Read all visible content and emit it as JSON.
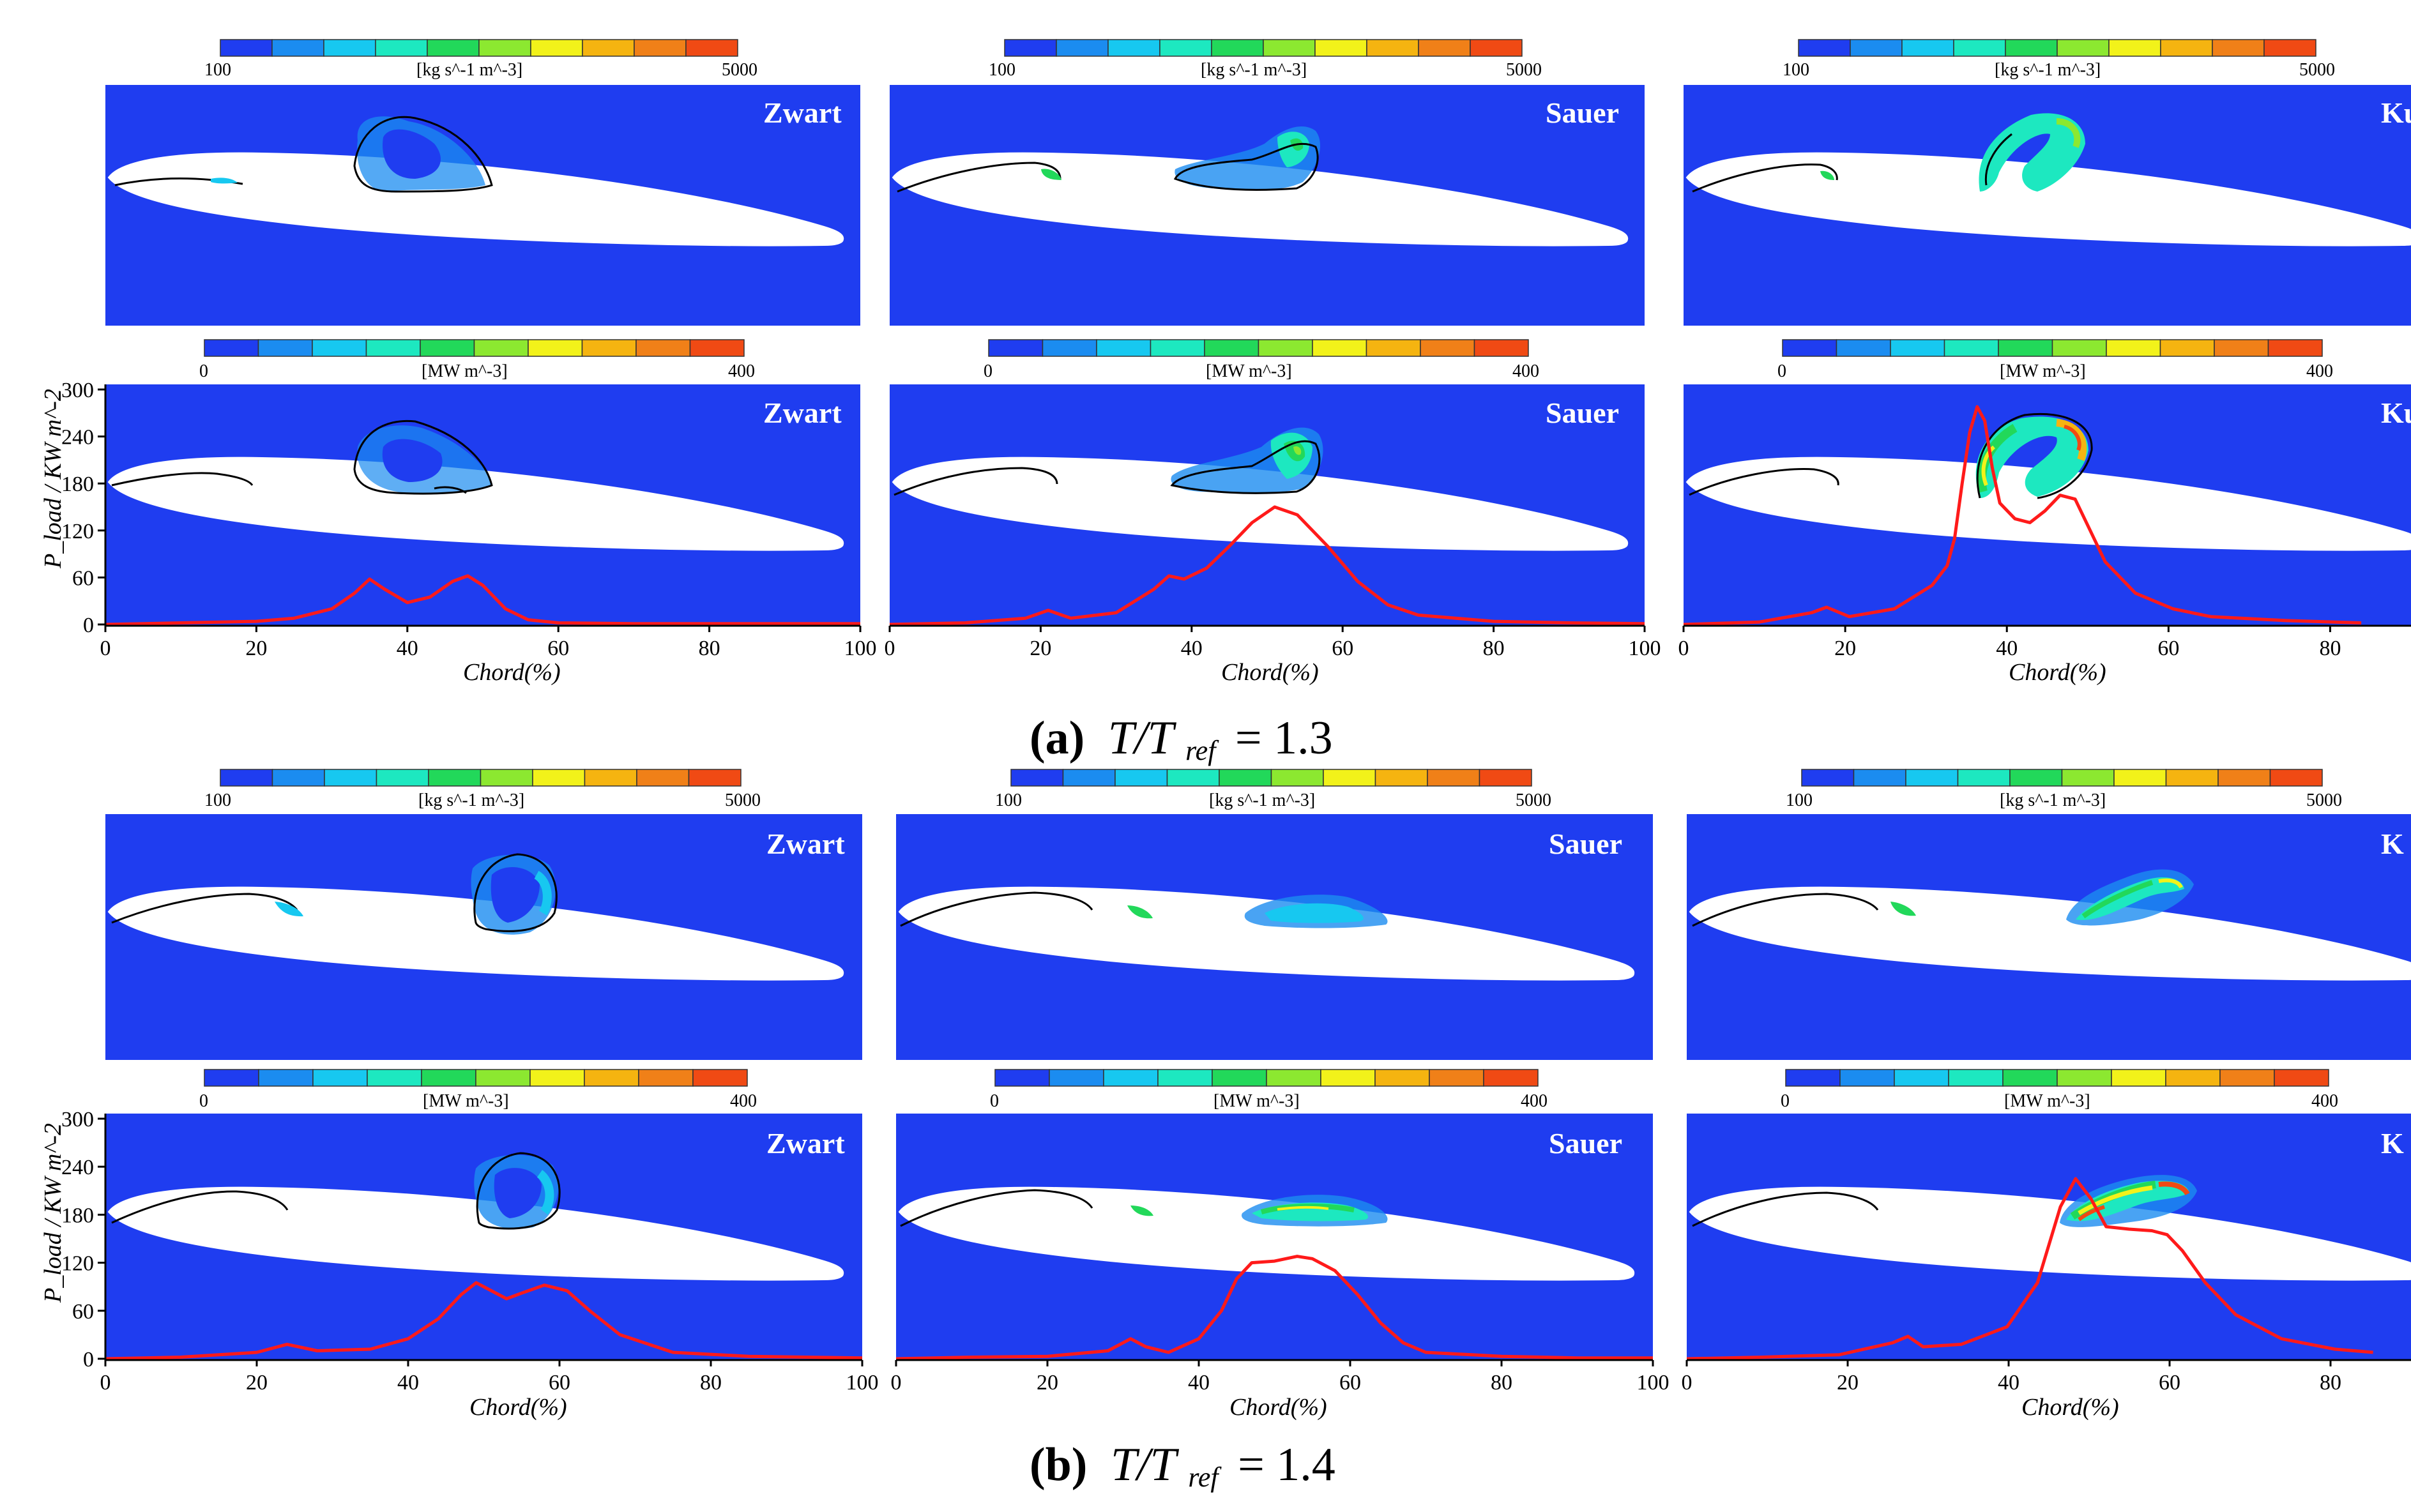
{
  "chart_data": {
    "type": "line",
    "colorbars": {
      "rate": {
        "min": "100",
        "max": "5000",
        "unit": "[kg s^-1 m^-3]"
      },
      "power": {
        "min": "0",
        "max": "400",
        "unit": "[MW m^-3]"
      }
    },
    "colorbar_colors": [
      "#1f3df0",
      "#1b8cf0",
      "#17c8f0",
      "#1de8c0",
      "#22d85a",
      "#8ce830",
      "#f2f21a",
      "#f5b410",
      "#f08018",
      "#f04a14"
    ],
    "colors": {
      "cavity_bg": "#1f3df0",
      "curve": "#ff1a1a",
      "foil": "#ffffff"
    },
    "x_axis": {
      "label": "Chord(%)",
      "ticks": [
        0,
        20,
        40,
        60,
        80,
        100
      ],
      "range": [
        0,
        100
      ]
    },
    "y_axis": {
      "label": "P_load / KW m^-2",
      "ticks": [
        0,
        60,
        120,
        180,
        240,
        300
      ],
      "range": [
        0,
        300
      ]
    },
    "models": [
      "Zwart",
      "Sauer",
      "Kunz"
    ],
    "visible_model_labels": [
      "Zwart",
      "Sauer",
      "Ku",
      "Zwart",
      "Sauer",
      "Ku",
      "Zwart",
      "Sauer",
      "K",
      "Zwart",
      "Sauer",
      "K"
    ],
    "groups": [
      {
        "tag": "(a)",
        "caption_ratio": "T/T",
        "caption_sub": "ref",
        "caption_value": "= 1.3",
        "series": [
          {
            "name": "Zwart",
            "x": [
              0,
              10,
              20,
              25,
              30,
              33,
              35,
              37,
              40,
              43,
              46,
              48,
              50,
              53,
              56,
              60,
              70,
              80,
              90,
              100
            ],
            "y": [
              0,
              2,
              4,
              8,
              20,
              40,
              58,
              45,
              28,
              35,
              55,
              62,
              50,
              20,
              6,
              2,
              1,
              1,
              1,
              1
            ]
          },
          {
            "name": "Sauer",
            "x": [
              0,
              10,
              18,
              21,
              24,
              30,
              35,
              37,
              39,
              42,
              45,
              48,
              51,
              54,
              58,
              62,
              66,
              70,
              80,
              90,
              100
            ],
            "y": [
              0,
              2,
              8,
              18,
              8,
              15,
              45,
              62,
              58,
              72,
              100,
              130,
              150,
              140,
              100,
              55,
              25,
              12,
              4,
              2,
              1
            ]
          },
          {
            "name": "Kunz",
            "x": [
              0,
              10,
              17,
              19,
              22,
              28,
              33,
              35,
              36,
              37,
              38,
              39,
              40,
              41,
              42,
              44,
              46,
              48,
              50,
              52,
              54,
              56,
              60,
              65,
              70,
              80,
              90
            ],
            "y": [
              0,
              3,
              15,
              22,
              10,
              20,
              50,
              75,
              110,
              180,
              245,
              278,
              260,
              200,
              155,
              135,
              130,
              145,
              165,
              160,
              120,
              80,
              40,
              20,
              10,
              5,
              2
            ]
          }
        ]
      },
      {
        "tag": "(b)",
        "caption_ratio": "T/T",
        "caption_sub": "ref",
        "caption_value": "= 1.4",
        "series": [
          {
            "name": "Zwart",
            "x": [
              0,
              10,
              20,
              24,
              28,
              35,
              40,
              44,
              47,
              49,
              51,
              53,
              55,
              58,
              61,
              64,
              68,
              75,
              85,
              100
            ],
            "y": [
              0,
              2,
              8,
              18,
              10,
              12,
              25,
              50,
              80,
              95,
              85,
              75,
              82,
              92,
              85,
              60,
              30,
              8,
              3,
              1
            ]
          },
          {
            "name": "Sauer",
            "x": [
              0,
              10,
              20,
              28,
              31,
              33,
              36,
              40,
              43,
              45,
              47,
              50,
              53,
              55,
              58,
              61,
              64,
              67,
              70,
              80,
              90,
              100
            ],
            "y": [
              0,
              2,
              3,
              10,
              25,
              15,
              8,
              25,
              60,
              100,
              120,
              122,
              128,
              125,
              110,
              80,
              45,
              20,
              8,
              3,
              1,
              1
            ]
          },
          {
            "name": "Kunz",
            "x": [
              0,
              10,
              20,
              27,
              29,
              31,
              36,
              42,
              46,
              49,
              51,
              53,
              55,
              58,
              61,
              63,
              65,
              68,
              72,
              78,
              85,
              90
            ],
            "y": [
              0,
              2,
              5,
              20,
              28,
              15,
              18,
              40,
              95,
              190,
              225,
              200,
              165,
              162,
              160,
              155,
              135,
              95,
              55,
              25,
              12,
              8
            ]
          }
        ]
      }
    ]
  }
}
